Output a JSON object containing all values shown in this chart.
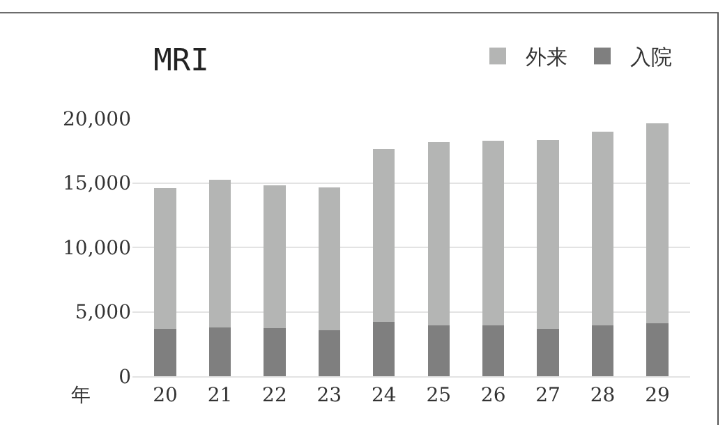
{
  "chart_data": {
    "type": "bar",
    "title": "MRI",
    "xlabel": "年",
    "stacked": true,
    "categories": [
      "20",
      "21",
      "22",
      "23",
      "24",
      "25",
      "26",
      "27",
      "28",
      "29"
    ],
    "series": [
      {
        "name": "入院",
        "color": "#7f7f7f",
        "values": [
          3650,
          3800,
          3750,
          3550,
          4200,
          3950,
          3950,
          3700,
          3950,
          4100
        ]
      },
      {
        "name": "外来",
        "color": "#b4b5b4",
        "values": [
          10950,
          11450,
          11050,
          11100,
          13400,
          14200,
          14300,
          14650,
          15000,
          15500
        ]
      }
    ],
    "ylim": [
      0,
      20000
    ],
    "yticks": [
      {
        "value": 0,
        "label": "0"
      },
      {
        "value": 5000,
        "label": "5,000"
      },
      {
        "value": 10000,
        "label": "10,000"
      },
      {
        "value": 15000,
        "label": "15,000"
      },
      {
        "value": 20000,
        "label": "20,000"
      }
    ],
    "grid": "y",
    "legend": "top right"
  }
}
